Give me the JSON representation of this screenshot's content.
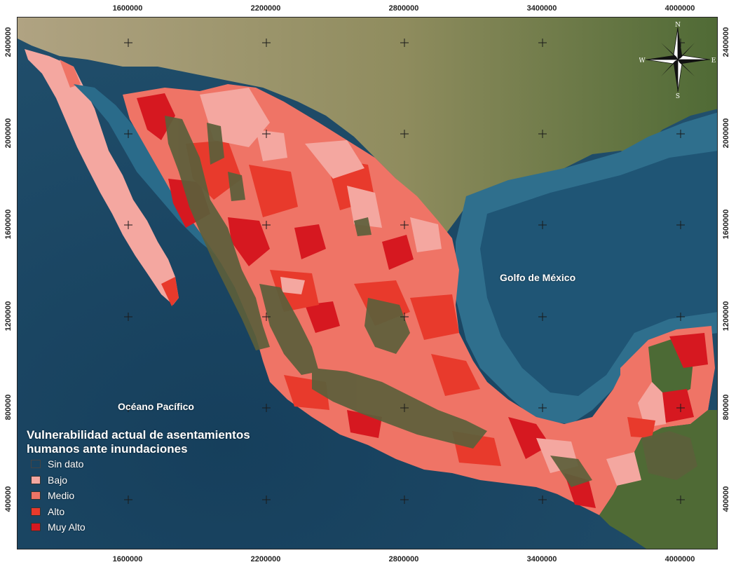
{
  "map": {
    "sea_labels": {
      "gulf": "Golfo de México",
      "pacific": "Océano Pacífico"
    },
    "x_ticks": [
      "1600000",
      "2200000",
      "2800000",
      "3400000",
      "4000000"
    ],
    "y_ticks": [
      "2400000",
      "2000000",
      "1600000",
      "1200000",
      "800000",
      "400000"
    ],
    "compass": {
      "n": "N",
      "s": "S",
      "e": "E",
      "w": "W"
    }
  },
  "legend": {
    "title": "Vulnerabilidad actual de asentamientos humanos ante inundaciones",
    "items": [
      {
        "label": "Sin dato",
        "color": "#2a3a3a"
      },
      {
        "label": "Bajo",
        "color": "#f4a7a0"
      },
      {
        "label": "Medio",
        "color": "#ef7466"
      },
      {
        "label": "Alto",
        "color": "#e83a2c"
      },
      {
        "label": "Muy Alto",
        "color": "#d61820"
      }
    ]
  },
  "colors": {
    "ocean": "#1e4f6e",
    "ocean_shelf": "#3f86a3",
    "land_north": "#8b8a62",
    "land_dry": "#a69b78",
    "mountain": "#5a5a3a"
  }
}
